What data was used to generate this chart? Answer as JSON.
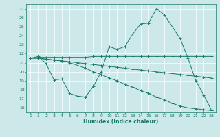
{
  "title": "",
  "xlabel": "Humidex (Indice chaleur)",
  "ylabel": "",
  "bg_color": "#cce8e8",
  "grid_color": "#ffffff",
  "line_color": "#1a7a6a",
  "xlim": [
    -0.5,
    23.5
  ],
  "ylim": [
    15.5,
    27.5
  ],
  "yticks": [
    16,
    17,
    18,
    19,
    20,
    21,
    22,
    23,
    24,
    25,
    26,
    27
  ],
  "xticks": [
    0,
    1,
    2,
    3,
    4,
    5,
    6,
    7,
    8,
    9,
    10,
    11,
    12,
    13,
    14,
    15,
    16,
    17,
    18,
    19,
    20,
    21,
    22,
    23
  ],
  "series": [
    {
      "x": [
        0,
        1,
        2,
        3,
        4,
        5,
        6,
        7,
        8,
        9,
        10,
        11,
        12,
        13,
        14,
        15,
        16,
        17,
        18,
        19,
        20,
        21,
        22,
        23
      ],
      "y": [
        21.5,
        21.7,
        20.9,
        19.1,
        19.2,
        17.6,
        17.3,
        17.2,
        18.4,
        20.0,
        22.8,
        22.5,
        22.8,
        24.2,
        25.3,
        25.4,
        27.0,
        26.3,
        25.0,
        23.7,
        21.5,
        19.0,
        17.4,
        15.7
      ]
    },
    {
      "x": [
        0,
        1,
        2,
        3,
        4,
        5,
        6,
        7,
        8,
        9,
        10,
        11,
        12,
        13,
        14,
        15,
        16,
        17,
        18,
        19,
        20,
        21,
        22,
        23
      ],
      "y": [
        21.5,
        21.6,
        21.6,
        21.6,
        21.6,
        21.6,
        21.6,
        21.6,
        21.7,
        21.7,
        21.7,
        21.7,
        21.7,
        21.7,
        21.7,
        21.7,
        21.7,
        21.7,
        21.7,
        21.7,
        21.7,
        21.7,
        21.7,
        21.7
      ]
    },
    {
      "x": [
        0,
        1,
        2,
        3,
        4,
        5,
        6,
        7,
        8,
        9,
        10,
        11,
        12,
        13,
        14,
        15,
        16,
        17,
        18,
        19,
        20,
        21,
        22,
        23
      ],
      "y": [
        21.5,
        21.5,
        21.4,
        21.3,
        21.2,
        21.1,
        21.0,
        20.9,
        20.8,
        20.7,
        20.6,
        20.5,
        20.4,
        20.3,
        20.2,
        20.1,
        20.0,
        19.9,
        19.8,
        19.7,
        19.6,
        19.5,
        19.4,
        19.3
      ]
    },
    {
      "x": [
        0,
        1,
        2,
        3,
        4,
        5,
        6,
        7,
        8,
        9,
        10,
        11,
        12,
        13,
        14,
        15,
        16,
        17,
        18,
        19,
        20,
        21,
        22,
        23
      ],
      "y": [
        21.5,
        21.5,
        21.4,
        21.3,
        21.2,
        21.0,
        20.7,
        20.4,
        20.0,
        19.7,
        19.3,
        19.0,
        18.6,
        18.3,
        17.9,
        17.6,
        17.2,
        16.9,
        16.5,
        16.2,
        16.0,
        15.9,
        15.8,
        15.7
      ]
    }
  ]
}
